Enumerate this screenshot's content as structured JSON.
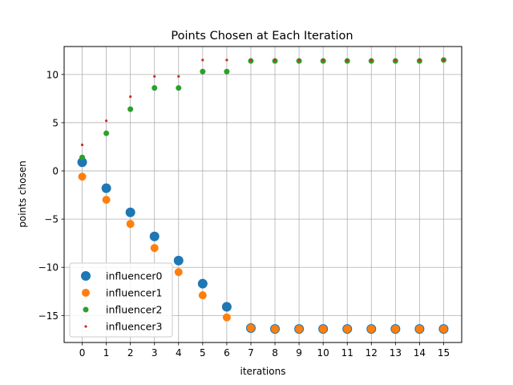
{
  "chart_data": {
    "type": "scatter",
    "title": "Points Chosen at Each Iteration",
    "xlabel": "iterations",
    "ylabel": "points chosen",
    "x": [
      0,
      1,
      2,
      3,
      4,
      5,
      6,
      7,
      8,
      9,
      10,
      11,
      12,
      13,
      14,
      15
    ],
    "xlim": [
      -0.75,
      15.75
    ],
    "ylim": [
      -17.8,
      12.9
    ],
    "xticks": [
      0,
      1,
      2,
      3,
      4,
      5,
      6,
      7,
      8,
      9,
      10,
      11,
      12,
      13,
      14,
      15
    ],
    "yticks": [
      -15,
      -10,
      -5,
      0,
      5,
      10
    ],
    "grid": true,
    "legend_position": "lower-left",
    "series": [
      {
        "name": "influencer0",
        "color": "#1f77b4",
        "marker_size": 6,
        "values": [
          0.9,
          -1.8,
          -4.3,
          -6.8,
          -9.3,
          -11.7,
          -14.1,
          -16.3,
          -16.4,
          -16.4,
          -16.4,
          -16.4,
          -16.4,
          -16.4,
          -16.4,
          -16.4
        ]
      },
      {
        "name": "influencer1",
        "color": "#ff7f0e",
        "marker_size": 5,
        "values": [
          -0.6,
          -3.0,
          -5.5,
          -8.0,
          -10.5,
          -12.9,
          -15.2,
          -16.3,
          -16.4,
          -16.4,
          -16.4,
          -16.4,
          -16.4,
          -16.4,
          -16.4,
          -16.4
        ]
      },
      {
        "name": "influencer2",
        "color": "#2ca02c",
        "marker_size": 3.5,
        "values": [
          1.4,
          3.9,
          6.4,
          8.6,
          8.6,
          10.3,
          10.3,
          11.4,
          11.4,
          11.4,
          11.4,
          11.4,
          11.4,
          11.4,
          11.4,
          11.5
        ]
      },
      {
        "name": "influencer3",
        "color": "#d62728",
        "marker_size": 1.6,
        "values": [
          2.7,
          5.2,
          7.7,
          9.8,
          9.8,
          11.5,
          11.5,
          11.5,
          11.5,
          11.5,
          11.5,
          11.5,
          11.5,
          11.5,
          11.5,
          11.5
        ]
      }
    ]
  }
}
